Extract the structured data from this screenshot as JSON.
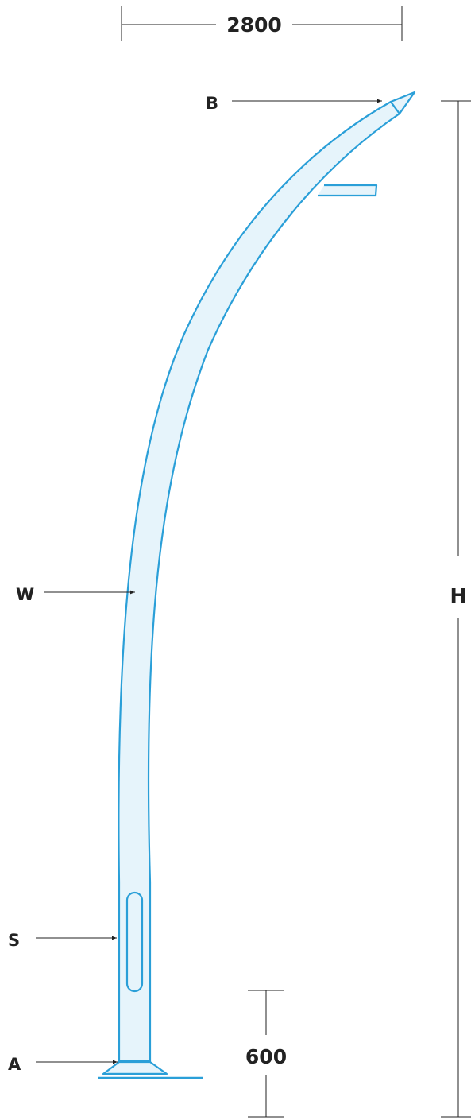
{
  "dimensions": {
    "top_width": "2800",
    "height_label": "H",
    "base_height": "600"
  },
  "callouts": {
    "b": "B",
    "w": "W",
    "s": "S",
    "a": "A"
  },
  "colors": {
    "outline": "#2a9fd8",
    "fill": "#e6f4fb",
    "dimension": "#222222"
  }
}
